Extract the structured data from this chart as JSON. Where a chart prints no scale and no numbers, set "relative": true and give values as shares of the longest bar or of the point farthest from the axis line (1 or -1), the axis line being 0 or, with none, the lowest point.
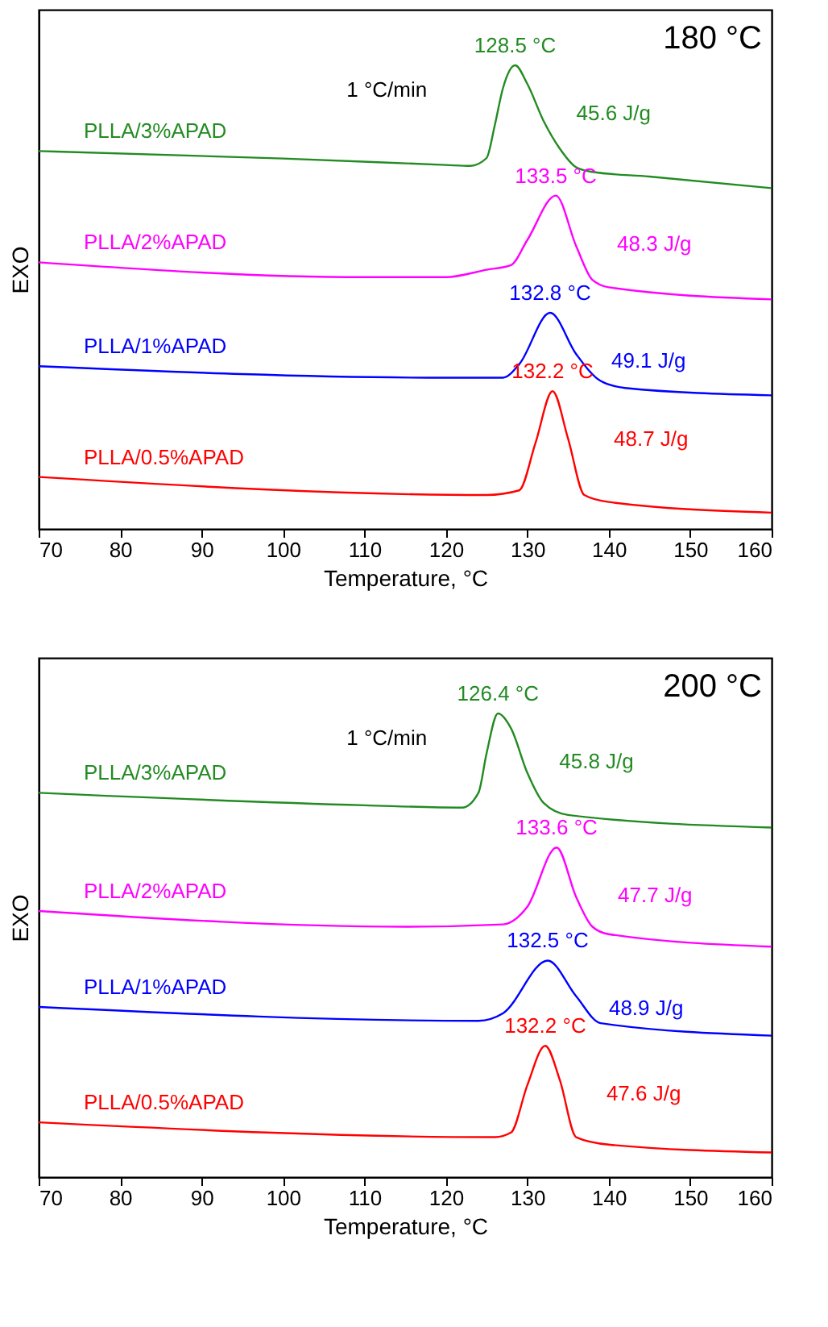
{
  "chart_data": [
    {
      "type": "line",
      "relative": true,
      "xlabel": "Temperature, °C",
      "ylabel": "EXO",
      "xlim": [
        70,
        160
      ],
      "xticks": [
        70,
        80,
        90,
        100,
        110,
        120,
        130,
        140,
        150,
        160
      ],
      "grid": false,
      "tick_labels": "x",
      "marker": "none",
      "line_style": "solid",
      "series": [
        {
          "name": "PLLA/3%APAD",
          "color": "#228b22",
          "x": [
            70,
            100,
            120,
            123,
            125,
            126,
            127,
            128.5,
            130,
            132,
            134,
            136,
            138,
            145,
            160
          ],
          "values": [
            0.815,
            0.799,
            0.785,
            0.783,
            0.8,
            0.87,
            0.95,
            1.0,
            0.96,
            0.88,
            0.82,
            0.78,
            0.77,
            0.76,
            0.735
          ]
        },
        {
          "name": "PLLA/2%APAD",
          "color": "#ff00ff",
          "x": [
            70,
            110,
            120,
            125,
            128,
            130,
            133.5,
            136,
            138,
            140,
            160
          ],
          "values": [
            0.575,
            0.543,
            0.543,
            0.559,
            0.569,
            0.623,
            0.719,
            0.61,
            0.537,
            0.521,
            0.495
          ]
        },
        {
          "name": "PLLA/1%APAD",
          "color": "#0000ff",
          "x": [
            70,
            120,
            127,
            129,
            132.8,
            136,
            139,
            142,
            160
          ],
          "values": [
            0.351,
            0.326,
            0.326,
            0.355,
            0.466,
            0.377,
            0.319,
            0.304,
            0.288
          ]
        },
        {
          "name": "PLLA/0.5%APAD",
          "color": "#ff0000",
          "x": [
            70,
            125,
            129,
            131,
            133.1,
            135,
            137,
            140,
            160
          ],
          "values": [
            0.112,
            0.073,
            0.083,
            0.185,
            0.297,
            0.195,
            0.073,
            0.058,
            0.035
          ]
        }
      ],
      "annotations": [
        {
          "text": "128.5 °C",
          "x": 128.5,
          "y": 1.0
        },
        {
          "text": "133.5 °C",
          "x": 133.5,
          "y": 0.719
        },
        {
          "text": "132.8 °C",
          "x": 132.8,
          "y": 0.466
        },
        {
          "text": "132.2 °C",
          "x": 133.1,
          "y": 0.297
        },
        "45.6 J/g",
        "48.3 J/g",
        "49.1 J/g",
        "48.7 J/g",
        "180 °C",
        "1 °C/min"
      ]
    },
    {
      "type": "line",
      "relative": true,
      "xlabel": "Temperature, °C",
      "ylabel": "EXO",
      "xlim": [
        70,
        160
      ],
      "xticks": [
        70,
        80,
        90,
        100,
        110,
        120,
        130,
        140,
        150,
        160
      ],
      "grid": false,
      "tick_labels": "x",
      "marker": "none",
      "line_style": "solid",
      "series": [
        {
          "name": "PLLA/3%APAD",
          "color": "#228b22",
          "x": [
            70,
            110,
            122,
            124,
            125,
            126.4,
            128,
            130,
            132,
            135,
            160
          ],
          "values": [
            0.829,
            0.802,
            0.797,
            0.829,
            0.914,
            1.0,
            0.968,
            0.872,
            0.807,
            0.781,
            0.754
          ]
        },
        {
          "name": "PLLA/2%APAD",
          "color": "#ff00ff",
          "x": [
            70,
            115,
            127,
            130,
            133.6,
            136,
            138,
            140,
            160
          ],
          "values": [
            0.574,
            0.54,
            0.545,
            0.583,
            0.711,
            0.604,
            0.54,
            0.524,
            0.497
          ]
        },
        {
          "name": "PLLA/1%APAD",
          "color": "#0000ff",
          "x": [
            70,
            124,
            127,
            132.5,
            136,
            139,
            160
          ],
          "values": [
            0.367,
            0.337,
            0.353,
            0.467,
            0.39,
            0.332,
            0.305
          ]
        },
        {
          "name": "PLLA/0.5%APAD",
          "color": "#ff0000",
          "x": [
            70,
            126,
            128,
            130,
            132.2,
            134,
            136,
            140,
            160
          ],
          "values": [
            0.118,
            0.086,
            0.096,
            0.198,
            0.283,
            0.209,
            0.086,
            0.07,
            0.053
          ]
        }
      ],
      "annotations": [
        {
          "text": "126.4 °C",
          "x": 126.4,
          "y": 1.0
        },
        {
          "text": "133.6 °C",
          "x": 133.6,
          "y": 0.711
        },
        {
          "text": "132.5 °C",
          "x": 132.5,
          "y": 0.467
        },
        {
          "text": "132.2 °C",
          "x": 132.2,
          "y": 0.283
        },
        "45.8 J/g",
        "47.7 J/g",
        "48.9 J/g",
        "47.6 J/g",
        "200 °C",
        "1 °C/min"
      ]
    }
  ]
}
